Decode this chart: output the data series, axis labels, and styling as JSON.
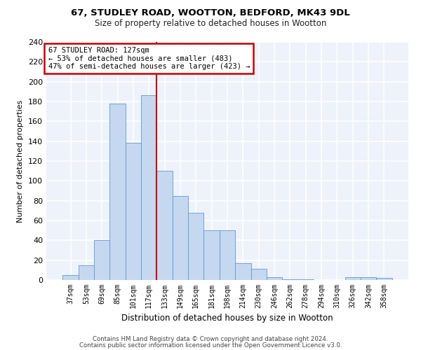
{
  "title1": "67, STUDLEY ROAD, WOOTTON, BEDFORD, MK43 9DL",
  "title2": "Size of property relative to detached houses in Wootton",
  "xlabel": "Distribution of detached houses by size in Wootton",
  "ylabel": "Number of detached properties",
  "bin_labels": [
    "37sqm",
    "53sqm",
    "69sqm",
    "85sqm",
    "101sqm",
    "117sqm",
    "133sqm",
    "149sqm",
    "165sqm",
    "181sqm",
    "198sqm",
    "214sqm",
    "230sqm",
    "246sqm",
    "262sqm",
    "278sqm",
    "294sqm",
    "310sqm",
    "326sqm",
    "342sqm",
    "358sqm"
  ],
  "bar_values": [
    5,
    15,
    40,
    178,
    138,
    186,
    110,
    85,
    68,
    50,
    50,
    17,
    11,
    3,
    1,
    1,
    0,
    0,
    3,
    3,
    2
  ],
  "bar_color": "#c5d8f0",
  "bar_edge_color": "#5b9bd5",
  "vline_color": "#cc0000",
  "annotation_text": "67 STUDLEY ROAD: 127sqm\n← 53% of detached houses are smaller (483)\n47% of semi-detached houses are larger (423) →",
  "annotation_box_color": "#cc0000",
  "ylim": [
    0,
    240
  ],
  "yticks": [
    0,
    20,
    40,
    60,
    80,
    100,
    120,
    140,
    160,
    180,
    200,
    220,
    240
  ],
  "footer1": "Contains HM Land Registry data © Crown copyright and database right 2024.",
  "footer2": "Contains public sector information licensed under the Open Government Licence v3.0.",
  "background_color": "#eef2fa"
}
